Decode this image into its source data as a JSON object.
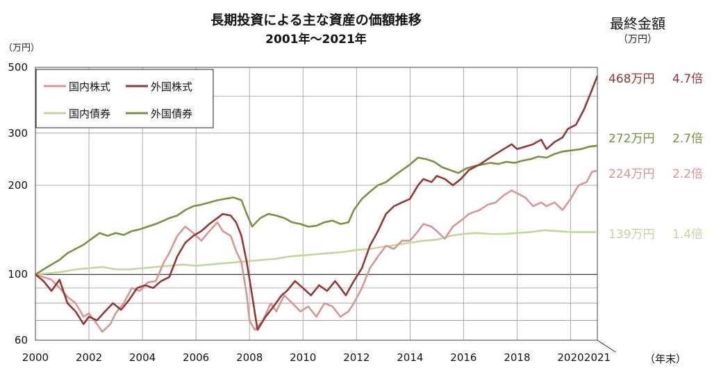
{
  "chart_data": {
    "type": "line",
    "title": "長期投資による主な資産の価額推移",
    "subtitle": "2001年～2021年",
    "ylabel": "（万円）",
    "xlabel": "（年末）",
    "y_scale": "log",
    "ylim": [
      60,
      500
    ],
    "xlim": [
      2000,
      2021
    ],
    "y_ticks": [
      60,
      100,
      200,
      300,
      500
    ],
    "x_ticks": [
      2000,
      2002,
      2004,
      2006,
      2008,
      2010,
      2012,
      2014,
      2016,
      2018,
      2020,
      2021
    ],
    "grid": true,
    "legend_position": "top-left",
    "final_header": "最終金額",
    "final_unit": "（万円）",
    "series": [
      {
        "name": "国内株式",
        "color": "#d99594",
        "final_amount": "224万円",
        "final_multiple": "2.2倍",
        "points": [
          [
            2000,
            100
          ],
          [
            2000.3,
            98
          ],
          [
            2000.6,
            96
          ],
          [
            2000.9,
            90
          ],
          [
            2001.2,
            84
          ],
          [
            2001.5,
            80
          ],
          [
            2001.8,
            72
          ],
          [
            2002.0,
            74
          ],
          [
            2002.3,
            68
          ],
          [
            2002.5,
            64
          ],
          [
            2002.8,
            68
          ],
          [
            2003.0,
            74
          ],
          [
            2003.3,
            80
          ],
          [
            2003.6,
            90
          ],
          [
            2003.9,
            88
          ],
          [
            2004.2,
            94
          ],
          [
            2004.5,
            95
          ],
          [
            2004.8,
            110
          ],
          [
            2005.0,
            118
          ],
          [
            2005.3,
            135
          ],
          [
            2005.6,
            145
          ],
          [
            2005.9,
            138
          ],
          [
            2006.2,
            130
          ],
          [
            2006.5,
            140
          ],
          [
            2006.8,
            150
          ],
          [
            2007.0,
            140
          ],
          [
            2007.3,
            135
          ],
          [
            2007.5,
            120
          ],
          [
            2007.7,
            110
          ],
          [
            2007.9,
            85
          ],
          [
            2008.0,
            70
          ],
          [
            2008.2,
            65
          ],
          [
            2008.5,
            70
          ],
          [
            2008.8,
            80
          ],
          [
            2009.0,
            75
          ],
          [
            2009.3,
            85
          ],
          [
            2009.6,
            80
          ],
          [
            2009.9,
            75
          ],
          [
            2010.2,
            78
          ],
          [
            2010.5,
            72
          ],
          [
            2010.8,
            80
          ],
          [
            2011.1,
            78
          ],
          [
            2011.4,
            72
          ],
          [
            2011.7,
            75
          ],
          [
            2011.9,
            80
          ],
          [
            2012.2,
            90
          ],
          [
            2012.5,
            105
          ],
          [
            2012.8,
            115
          ],
          [
            2013.1,
            125
          ],
          [
            2013.4,
            122
          ],
          [
            2013.7,
            130
          ],
          [
            2014.0,
            130
          ],
          [
            2014.3,
            140
          ],
          [
            2014.5,
            148
          ],
          [
            2014.8,
            145
          ],
          [
            2015.0,
            140
          ],
          [
            2015.3,
            132
          ],
          [
            2015.6,
            145
          ],
          [
            2015.9,
            152
          ],
          [
            2016.2,
            160
          ],
          [
            2016.6,
            165
          ],
          [
            2016.9,
            172
          ],
          [
            2017.2,
            175
          ],
          [
            2017.5,
            185
          ],
          [
            2017.8,
            192
          ],
          [
            2018.0,
            188
          ],
          [
            2018.3,
            182
          ],
          [
            2018.6,
            170
          ],
          [
            2018.9,
            175
          ],
          [
            2019.1,
            170
          ],
          [
            2019.4,
            175
          ],
          [
            2019.7,
            165
          ],
          [
            2020.0,
            180
          ],
          [
            2020.3,
            200
          ],
          [
            2020.6,
            205
          ],
          [
            2020.8,
            222
          ],
          [
            2021.0,
            224
          ]
        ]
      },
      {
        "name": "外国株式",
        "color": "#943634",
        "final_amount": "468万円",
        "final_multiple": "4.7倍",
        "points": [
          [
            2000,
            100
          ],
          [
            2000.3,
            95
          ],
          [
            2000.6,
            88
          ],
          [
            2000.9,
            96
          ],
          [
            2001.2,
            80
          ],
          [
            2001.5,
            75
          ],
          [
            2001.8,
            68
          ],
          [
            2002.0,
            72
          ],
          [
            2002.3,
            70
          ],
          [
            2002.6,
            75
          ],
          [
            2002.9,
            80
          ],
          [
            2003.2,
            76
          ],
          [
            2003.5,
            82
          ],
          [
            2003.8,
            90
          ],
          [
            2004.1,
            92
          ],
          [
            2004.4,
            90
          ],
          [
            2004.7,
            95
          ],
          [
            2005.0,
            98
          ],
          [
            2005.3,
            115
          ],
          [
            2005.6,
            128
          ],
          [
            2005.9,
            135
          ],
          [
            2006.2,
            140
          ],
          [
            2006.5,
            148
          ],
          [
            2006.8,
            155
          ],
          [
            2007.0,
            160
          ],
          [
            2007.3,
            158
          ],
          [
            2007.5,
            150
          ],
          [
            2007.7,
            135
          ],
          [
            2007.9,
            110
          ],
          [
            2008.1,
            85
          ],
          [
            2008.3,
            65
          ],
          [
            2008.6,
            72
          ],
          [
            2008.9,
            78
          ],
          [
            2009.2,
            85
          ],
          [
            2009.4,
            88
          ],
          [
            2009.7,
            95
          ],
          [
            2010.0,
            90
          ],
          [
            2010.3,
            85
          ],
          [
            2010.6,
            92
          ],
          [
            2010.9,
            88
          ],
          [
            2011.2,
            95
          ],
          [
            2011.4,
            90
          ],
          [
            2011.6,
            85
          ],
          [
            2011.9,
            95
          ],
          [
            2012.2,
            105
          ],
          [
            2012.5,
            125
          ],
          [
            2012.8,
            140
          ],
          [
            2013.1,
            160
          ],
          [
            2013.4,
            170
          ],
          [
            2013.7,
            175
          ],
          [
            2014.0,
            180
          ],
          [
            2014.3,
            200
          ],
          [
            2014.5,
            210
          ],
          [
            2014.8,
            205
          ],
          [
            2015.0,
            215
          ],
          [
            2015.3,
            210
          ],
          [
            2015.6,
            200
          ],
          [
            2015.9,
            210
          ],
          [
            2016.2,
            225
          ],
          [
            2016.6,
            235
          ],
          [
            2016.9,
            245
          ],
          [
            2017.2,
            255
          ],
          [
            2017.5,
            265
          ],
          [
            2017.8,
            275
          ],
          [
            2018.0,
            265
          ],
          [
            2018.3,
            270
          ],
          [
            2018.6,
            275
          ],
          [
            2018.9,
            285
          ],
          [
            2019.1,
            265
          ],
          [
            2019.4,
            280
          ],
          [
            2019.7,
            290
          ],
          [
            2019.9,
            310
          ],
          [
            2020.2,
            320
          ],
          [
            2020.5,
            360
          ],
          [
            2020.8,
            420
          ],
          [
            2021.0,
            468
          ]
        ]
      },
      {
        "name": "国内債券",
        "color": "#c3d69b",
        "final_amount": "139万円",
        "final_multiple": "1.4倍",
        "points": [
          [
            2000,
            100
          ],
          [
            2000.5,
            101
          ],
          [
            2001.0,
            102
          ],
          [
            2001.5,
            104
          ],
          [
            2002.0,
            105
          ],
          [
            2002.5,
            106
          ],
          [
            2003.0,
            104
          ],
          [
            2003.5,
            104
          ],
          [
            2004.0,
            105
          ],
          [
            2004.5,
            106
          ],
          [
            2005.0,
            107
          ],
          [
            2005.5,
            108
          ],
          [
            2006.0,
            107
          ],
          [
            2006.5,
            108
          ],
          [
            2007.0,
            109
          ],
          [
            2007.5,
            110
          ],
          [
            2008.0,
            111
          ],
          [
            2008.5,
            112
          ],
          [
            2009.0,
            113
          ],
          [
            2009.5,
            115
          ],
          [
            2010.0,
            116
          ],
          [
            2010.5,
            117
          ],
          [
            2011.0,
            118
          ],
          [
            2011.5,
            119
          ],
          [
            2012.0,
            121
          ],
          [
            2012.5,
            122
          ],
          [
            2013.0,
            124
          ],
          [
            2013.5,
            126
          ],
          [
            2014.0,
            128
          ],
          [
            2014.5,
            130
          ],
          [
            2015.0,
            131
          ],
          [
            2015.5,
            135
          ],
          [
            2016.0,
            137
          ],
          [
            2016.5,
            138
          ],
          [
            2017.0,
            137
          ],
          [
            2017.5,
            137
          ],
          [
            2018.0,
            138
          ],
          [
            2018.5,
            139
          ],
          [
            2019.0,
            141
          ],
          [
            2019.5,
            140
          ],
          [
            2020.0,
            139
          ],
          [
            2020.5,
            139
          ],
          [
            2021.0,
            139
          ]
        ]
      },
      {
        "name": "外国債券",
        "color": "#76923c",
        "final_amount": "272万円",
        "final_multiple": "2.7倍",
        "points": [
          [
            2000,
            100
          ],
          [
            2000.3,
            104
          ],
          [
            2000.6,
            108
          ],
          [
            2000.9,
            112
          ],
          [
            2001.2,
            118
          ],
          [
            2001.5,
            122
          ],
          [
            2001.8,
            126
          ],
          [
            2002.1,
            132
          ],
          [
            2002.4,
            138
          ],
          [
            2002.7,
            135
          ],
          [
            2003.0,
            138
          ],
          [
            2003.3,
            136
          ],
          [
            2003.6,
            140
          ],
          [
            2003.9,
            142
          ],
          [
            2004.2,
            145
          ],
          [
            2004.5,
            148
          ],
          [
            2004.8,
            152
          ],
          [
            2005.0,
            155
          ],
          [
            2005.3,
            158
          ],
          [
            2005.6,
            165
          ],
          [
            2005.9,
            170
          ],
          [
            2006.2,
            172
          ],
          [
            2006.5,
            175
          ],
          [
            2006.8,
            178
          ],
          [
            2007.1,
            180
          ],
          [
            2007.4,
            182
          ],
          [
            2007.7,
            178
          ],
          [
            2007.9,
            160
          ],
          [
            2008.1,
            145
          ],
          [
            2008.4,
            155
          ],
          [
            2008.7,
            160
          ],
          [
            2009.0,
            158
          ],
          [
            2009.3,
            155
          ],
          [
            2009.6,
            150
          ],
          [
            2009.9,
            148
          ],
          [
            2010.2,
            145
          ],
          [
            2010.5,
            146
          ],
          [
            2010.8,
            150
          ],
          [
            2011.1,
            152
          ],
          [
            2011.4,
            148
          ],
          [
            2011.7,
            150
          ],
          [
            2011.9,
            165
          ],
          [
            2012.2,
            180
          ],
          [
            2012.5,
            190
          ],
          [
            2012.8,
            200
          ],
          [
            2013.1,
            205
          ],
          [
            2013.4,
            215
          ],
          [
            2013.7,
            225
          ],
          [
            2014.0,
            235
          ],
          [
            2014.3,
            248
          ],
          [
            2014.6,
            245
          ],
          [
            2014.9,
            240
          ],
          [
            2015.2,
            230
          ],
          [
            2015.5,
            225
          ],
          [
            2015.8,
            220
          ],
          [
            2016.1,
            228
          ],
          [
            2016.4,
            232
          ],
          [
            2016.7,
            235
          ],
          [
            2017.0,
            238
          ],
          [
            2017.3,
            236
          ],
          [
            2017.6,
            240
          ],
          [
            2017.9,
            238
          ],
          [
            2018.2,
            242
          ],
          [
            2018.5,
            245
          ],
          [
            2018.8,
            250
          ],
          [
            2019.1,
            248
          ],
          [
            2019.4,
            255
          ],
          [
            2019.7,
            260
          ],
          [
            2020.0,
            262
          ],
          [
            2020.4,
            265
          ],
          [
            2020.7,
            270
          ],
          [
            2021.0,
            272
          ]
        ]
      }
    ]
  }
}
